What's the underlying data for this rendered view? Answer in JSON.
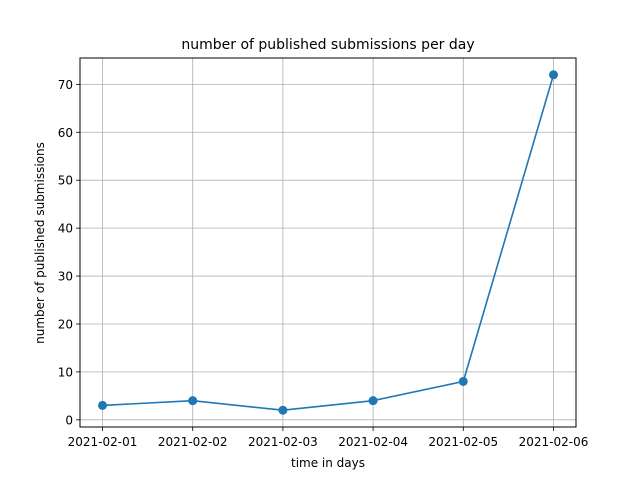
{
  "chart_data": {
    "type": "line",
    "title": "number of published submissions per day",
    "xlabel": "time in days",
    "ylabel": "number of published submissions",
    "x": [
      "2021-02-01",
      "2021-02-02",
      "2021-02-03",
      "2021-02-04",
      "2021-02-05",
      "2021-02-06"
    ],
    "series": [
      {
        "values": [
          3,
          4,
          2,
          4,
          8,
          72
        ],
        "color": "#1f77b4",
        "marker": "circle"
      }
    ],
    "yticks": [
      0,
      10,
      20,
      30,
      40,
      50,
      60,
      70
    ],
    "ylim": [
      -1.5,
      75.5
    ],
    "grid": true
  }
}
